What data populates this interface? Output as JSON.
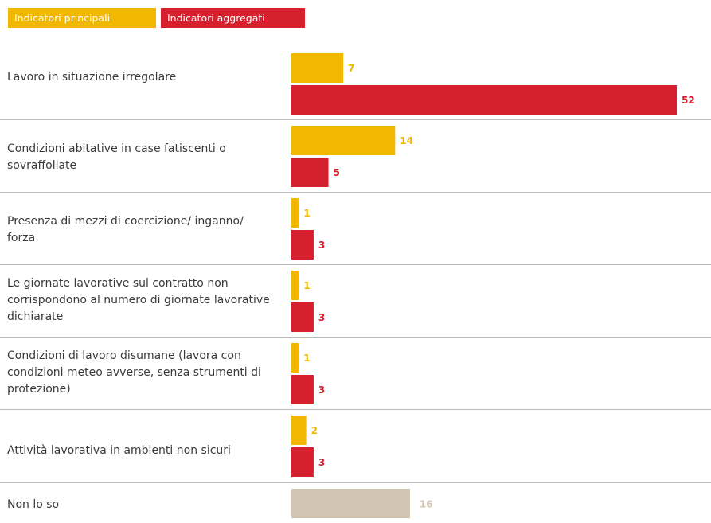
{
  "legend": {
    "principal_label": "Indicatori principali",
    "aggregate_label": "Indicatori aggregati"
  },
  "colors": {
    "principal": "#F2B700",
    "aggregate": "#D7202E",
    "unknown": "#D2C4B3",
    "text": "#3A3A3A",
    "divider": "#B9B9B9"
  },
  "chart_data": {
    "type": "bar",
    "orientation": "horizontal",
    "categories": [
      "Lavoro in situazione irregolare",
      "Condizioni abitative in case fatiscenti o sovraffollate",
      "Presenza di mezzi di coercizione/ inganno/ forza",
      "Le giornate lavorative sul contratto non corrispondono al numero di giornate lavorative dichiarate",
      "Condizioni di lavoro disumane (lavora con condizioni meteo avverse, senza strumenti di protezione)",
      "Attività lavorativa in ambienti non sicuri",
      "Non lo so"
    ],
    "series": [
      {
        "name": "Indicatori principali",
        "values": [
          7,
          14,
          1,
          1,
          1,
          2,
          null
        ]
      },
      {
        "name": "Indicatori aggregati",
        "values": [
          52,
          5,
          3,
          3,
          3,
          3,
          null
        ]
      }
    ],
    "unknown_value": 16,
    "xlim": [
      0,
      52
    ],
    "grid": false,
    "legend_position": "top-left"
  }
}
